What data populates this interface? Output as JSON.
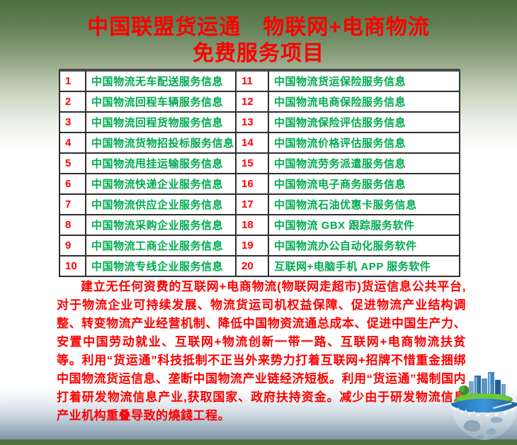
{
  "page": {
    "title_line1": "中国联盟货运通　物联网+电商物流",
    "title_line2": "免费服务项目"
  },
  "table": {
    "rows": [
      {
        "num_left": "1",
        "service_left": "中国物流无车配送服务信息",
        "num_right": "11",
        "service_right": "中国物流货运保险服务信息"
      },
      {
        "num_left": "2",
        "service_left": "中国物流回程车辆服务信息",
        "num_right": "12",
        "service_right": "中国物流电商保险服务信息"
      },
      {
        "num_left": "3",
        "service_left": "中国物流回程货物服务信息",
        "num_right": "13",
        "service_right": "中国物流保险评估服务信息"
      },
      {
        "num_left": "4",
        "service_left": "中国物流货物招投标服务信息",
        "num_right": "14",
        "service_right": "中国物流价格评估服务信息"
      },
      {
        "num_left": "5",
        "service_left": "中国物流甩挂运输服务信息",
        "num_right": "15",
        "service_right": "中国物流劳务派遣服务信息"
      },
      {
        "num_left": "6",
        "service_left": "中国物流快递企业服务信息",
        "num_right": "16",
        "service_right": "中国物流电子商务服务信息"
      },
      {
        "num_left": "7",
        "service_left": "中国物流供应企业服务信息",
        "num_right": "17",
        "service_right": "中国物流石油优惠卡服务信息"
      },
      {
        "num_left": "8",
        "service_left": "中国物流采购企业服务信息",
        "num_right": "18",
        "service_right": "中国物流 GBX 跟踪服务软件"
      },
      {
        "num_left": "9",
        "service_left": "中国物流工商企业服务信息",
        "num_right": "19",
        "service_right": "中国物流办公自动化服务软件"
      },
      {
        "num_left": "10",
        "service_left": "中国物流专线企业服务信息",
        "num_right": "20",
        "service_right": "互联网+电脑手机 APP 服务软件"
      }
    ]
  },
  "paragraph": {
    "text": "建立无任何资费的互联网+电商物流(物联网走超市)货运信息公共平台,对于物流企业可持续发展、物流货运司机权益保障、促进物流产业结构调整、转变物流产业经营机制、降低中国物资流通总成本、促进中国生产力、安置中国劳动就业、互联网+物流创新一带一路、互联网+电商物流扶贫等。利用“货运通”科技抵制不正当外来势力打着互联网+招牌不惜重金捆绑中国物流货运信息、垄断中国物流产业链经济短板。利用“货运通”揭制国内打着研发物流信息产业,获取国家、政府扶持资金。减少由于研发物流信息产业机构重叠导致的燒錢工程。"
  },
  "colors": {
    "title_red": "#fe0000",
    "number_red": "#fe0000",
    "service_green": "#00ab4e",
    "header_background_green": "#4d7142",
    "footer_band_blue": "#7e94a8"
  },
  "decoration": {
    "globe_illustration": "globe-with-city-skyline"
  }
}
